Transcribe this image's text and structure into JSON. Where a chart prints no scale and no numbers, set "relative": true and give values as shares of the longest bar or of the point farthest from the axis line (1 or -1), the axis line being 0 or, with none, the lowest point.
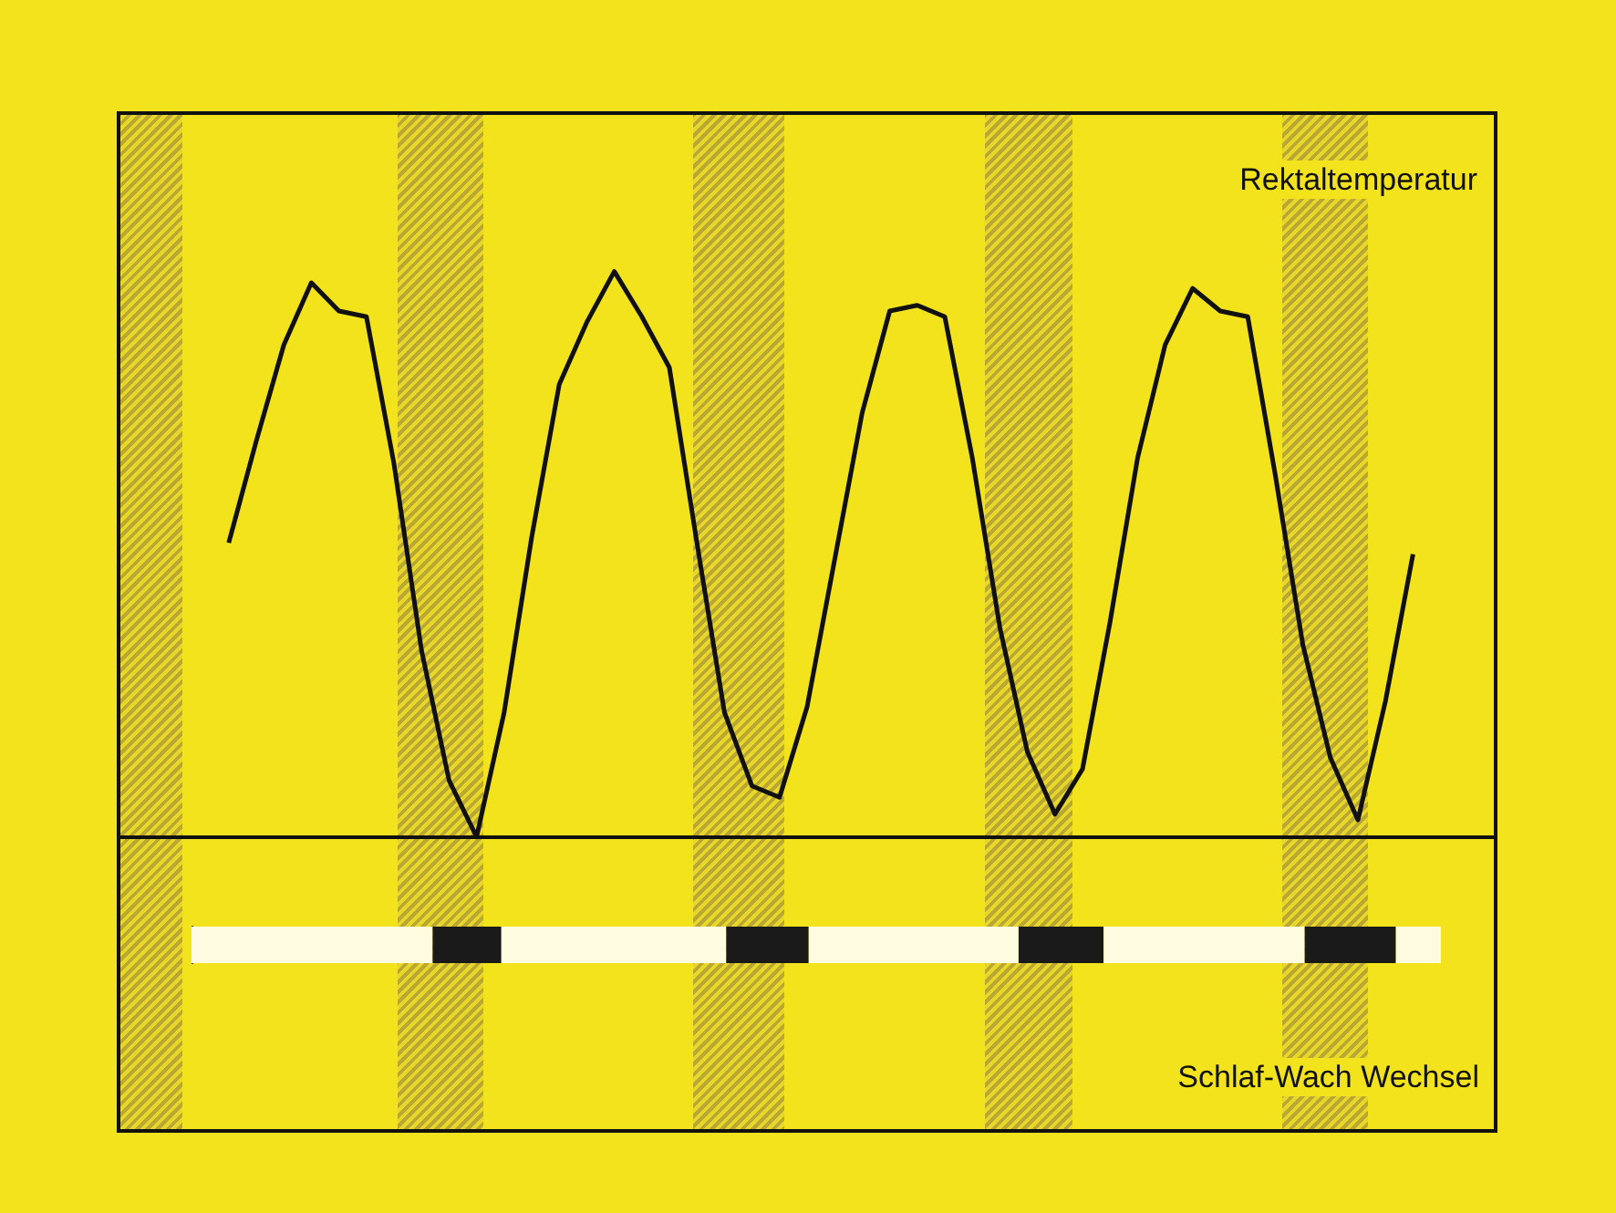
{
  "chart_data": [
    {
      "type": "line",
      "relative": true,
      "categories": [
        null,
        null,
        null,
        null,
        null,
        null,
        null,
        null,
        null,
        null,
        null,
        null,
        null,
        null,
        null,
        null,
        null,
        null,
        null,
        null,
        null,
        null,
        null,
        null,
        null,
        null,
        null,
        null,
        null,
        null,
        null,
        null,
        null,
        null,
        null,
        null,
        null,
        null,
        null,
        null,
        null,
        null,
        null,
        null,
        null,
        null,
        null,
        null,
        null,
        null,
        null
      ],
      "series": [
        {
          "name": "Rektaltemperatur",
          "color": "#111111",
          "values": [
            null,
            null,
            null,
            null,
            0.52,
            0.7,
            0.87,
            0.98,
            0.93,
            0.92,
            0.66,
            0.33,
            0.1,
            0.0,
            0.22,
            0.53,
            0.8,
            0.91,
            1.0,
            0.92,
            0.83,
            0.52,
            0.22,
            0.09,
            0.07,
            0.23,
            0.49,
            0.75,
            0.93,
            0.94,
            0.92,
            0.67,
            0.37,
            0.15,
            0.04,
            0.12,
            0.38,
            0.67,
            0.87,
            0.97,
            0.93,
            0.92,
            0.64,
            0.34,
            0.14,
            0.03,
            0.24,
            0.5,
            null,
            null,
            null
          ]
        }
      ]
    },
    {
      "type": "bar",
      "orientation": "horizontal",
      "stacked": true,
      "relative": true,
      "categories": [
        null
      ],
      "annotations": [
        "Schlaf-Wach Wechsel"
      ],
      "series": [
        {
          "color": "#fffbe0",
          "values": [
            0.193
          ]
        },
        {
          "color": "#1a1a1a",
          "values": [
            0.055
          ]
        },
        {
          "color": "#fffbe0",
          "values": [
            0.18
          ]
        },
        {
          "color": "#1a1a1a",
          "values": [
            0.066
          ]
        },
        {
          "color": "#fffbe0",
          "values": [
            0.168
          ]
        },
        {
          "color": "#1a1a1a",
          "values": [
            0.068
          ]
        },
        {
          "color": "#fffbe0",
          "values": [
            0.161
          ]
        },
        {
          "color": "#1a1a1a",
          "values": [
            0.073
          ]
        },
        {
          "color": "#fffbe0",
          "values": [
            0.036
          ]
        }
      ]
    }
  ]
}
